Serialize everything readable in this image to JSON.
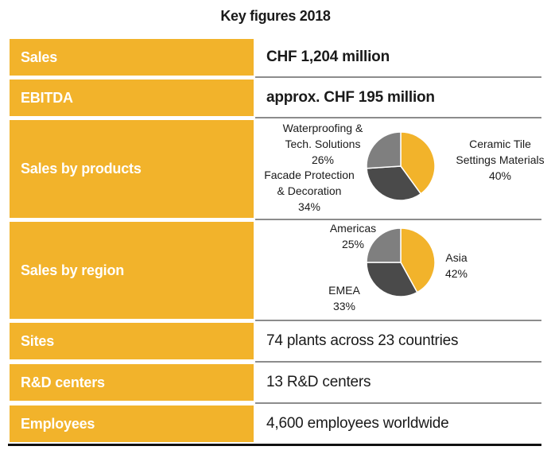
{
  "title": "Key figures 2018",
  "rows": [
    {
      "label": "Sales",
      "value": "CHF 1,204 million"
    },
    {
      "label": "EBITDA",
      "value": "approx. CHF 195 million"
    },
    {
      "label": "Sales by products"
    },
    {
      "label": "Sales by region"
    },
    {
      "label": "Sites",
      "value": "74 plants across 23 countries"
    },
    {
      "label": "R&D centers",
      "value": "13 R&D centers"
    },
    {
      "label": "Employees",
      "value": "4,600 employees worldwide"
    }
  ],
  "colors": {
    "accent": "#f2b32b",
    "dark": "#4a4a4a",
    "mid": "#7f7f7f",
    "label_text": "#ffffff"
  },
  "chart_data": [
    {
      "type": "pie",
      "title": "Sales by products",
      "categories": [
        "Ceramic Tile Settings Materials",
        "Facade Protection & Decoration",
        "Waterproofing & Tech. Solutions"
      ],
      "values": [
        40,
        34,
        26
      ],
      "unit": "%",
      "colors": [
        "#f2b32b",
        "#4a4a4a",
        "#7f7f7f"
      ],
      "labels": [
        {
          "lines": [
            "Ceramic Tile",
            "Settings Materials",
            "40%"
          ]
        },
        {
          "lines": [
            "Facade Protection",
            "& Decoration",
            "34%"
          ]
        },
        {
          "lines": [
            "Waterproofing &",
            "Tech. Solutions",
            "26%"
          ]
        }
      ]
    },
    {
      "type": "pie",
      "title": "Sales by region",
      "categories": [
        "Asia",
        "EMEA",
        "Americas"
      ],
      "values": [
        42,
        33,
        25
      ],
      "unit": "%",
      "colors": [
        "#f2b32b",
        "#4a4a4a",
        "#7f7f7f"
      ],
      "labels": [
        {
          "lines": [
            "Asia",
            "42%"
          ]
        },
        {
          "lines": [
            "EMEA",
            "33%"
          ]
        },
        {
          "lines": [
            "Americas",
            "25%"
          ]
        }
      ]
    }
  ]
}
